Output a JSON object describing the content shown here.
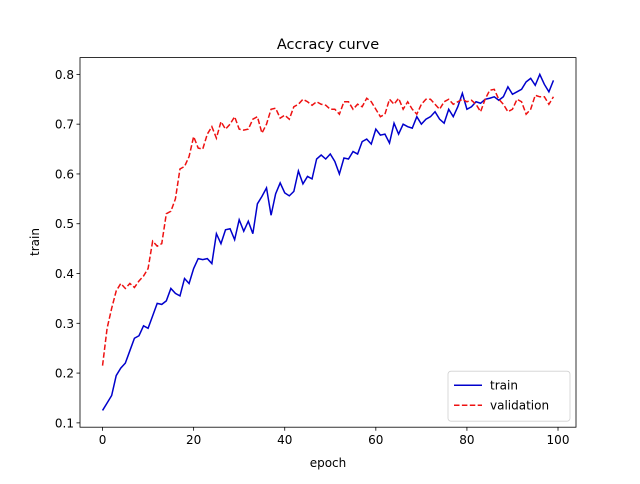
{
  "chart_data": {
    "type": "line",
    "title": "Accracy curve",
    "xlabel": "epoch",
    "ylabel": "train",
    "x": [
      0,
      1,
      2,
      3,
      4,
      5,
      6,
      7,
      8,
      9,
      10,
      11,
      12,
      13,
      14,
      15,
      16,
      17,
      18,
      19,
      20,
      21,
      22,
      23,
      24,
      25,
      26,
      27,
      28,
      29,
      30,
      31,
      32,
      33,
      34,
      35,
      36,
      37,
      38,
      39,
      40,
      41,
      42,
      43,
      44,
      45,
      46,
      47,
      48,
      49,
      50,
      51,
      52,
      53,
      54,
      55,
      56,
      57,
      58,
      59,
      60,
      61,
      62,
      63,
      64,
      65,
      66,
      67,
      68,
      69,
      70,
      71,
      72,
      73,
      74,
      75,
      76,
      77,
      78,
      79,
      80,
      81,
      82,
      83,
      84,
      85,
      86,
      87,
      88,
      89,
      90,
      91,
      92,
      93,
      94,
      95,
      96,
      97,
      98,
      99
    ],
    "series": [
      {
        "name": "train",
        "color": "#0000cc",
        "linestyle": "solid",
        "values": [
          0.125,
          0.14,
          0.155,
          0.195,
          0.21,
          0.22,
          0.245,
          0.27,
          0.275,
          0.295,
          0.29,
          0.315,
          0.34,
          0.338,
          0.345,
          0.37,
          0.36,
          0.355,
          0.39,
          0.38,
          0.41,
          0.43,
          0.428,
          0.43,
          0.42,
          0.48,
          0.46,
          0.488,
          0.49,
          0.468,
          0.508,
          0.485,
          0.505,
          0.48,
          0.54,
          0.555,
          0.572,
          0.517,
          0.56,
          0.582,
          0.562,
          0.556,
          0.565,
          0.606,
          0.58,
          0.595,
          0.59,
          0.63,
          0.638,
          0.63,
          0.64,
          0.625,
          0.6,
          0.632,
          0.63,
          0.645,
          0.64,
          0.665,
          0.67,
          0.66,
          0.69,
          0.678,
          0.68,
          0.662,
          0.702,
          0.68,
          0.7,
          0.695,
          0.692,
          0.715,
          0.7,
          0.71,
          0.715,
          0.725,
          0.71,
          0.702,
          0.73,
          0.715,
          0.735,
          0.762,
          0.73,
          0.735,
          0.745,
          0.742,
          0.75,
          0.752,
          0.755,
          0.748,
          0.755,
          0.775,
          0.76,
          0.765,
          0.77,
          0.785,
          0.792,
          0.778,
          0.8,
          0.78,
          0.765,
          0.788
        ]
      },
      {
        "name": "validation",
        "color": "#ee1111",
        "linestyle": "dashed",
        "values": [
          0.215,
          0.29,
          0.33,
          0.365,
          0.38,
          0.37,
          0.38,
          0.372,
          0.385,
          0.395,
          0.41,
          0.465,
          0.455,
          0.46,
          0.52,
          0.525,
          0.55,
          0.61,
          0.615,
          0.635,
          0.675,
          0.652,
          0.65,
          0.68,
          0.695,
          0.672,
          0.705,
          0.69,
          0.7,
          0.715,
          0.69,
          0.688,
          0.69,
          0.71,
          0.715,
          0.682,
          0.7,
          0.73,
          0.732,
          0.712,
          0.718,
          0.71,
          0.735,
          0.74,
          0.75,
          0.745,
          0.738,
          0.745,
          0.74,
          0.738,
          0.73,
          0.73,
          0.72,
          0.745,
          0.745,
          0.73,
          0.74,
          0.735,
          0.752,
          0.745,
          0.73,
          0.715,
          0.72,
          0.75,
          0.74,
          0.752,
          0.73,
          0.745,
          0.73,
          0.72,
          0.74,
          0.75,
          0.75,
          0.74,
          0.73,
          0.745,
          0.75,
          0.74,
          0.745,
          0.75,
          0.745,
          0.748,
          0.74,
          0.725,
          0.75,
          0.768,
          0.77,
          0.75,
          0.74,
          0.725,
          0.73,
          0.75,
          0.745,
          0.72,
          0.73,
          0.758,
          0.755,
          0.755,
          0.74,
          0.755
        ]
      }
    ],
    "xlim": [
      -4.95,
      103.95
    ],
    "ylim": [
      0.0913,
      0.8337
    ],
    "xticks": [
      0,
      20,
      40,
      60,
      80,
      100
    ],
    "yticks": [
      0.1,
      0.2,
      0.3,
      0.4,
      0.5,
      0.6,
      0.7,
      0.8
    ],
    "legend": "lower right"
  }
}
